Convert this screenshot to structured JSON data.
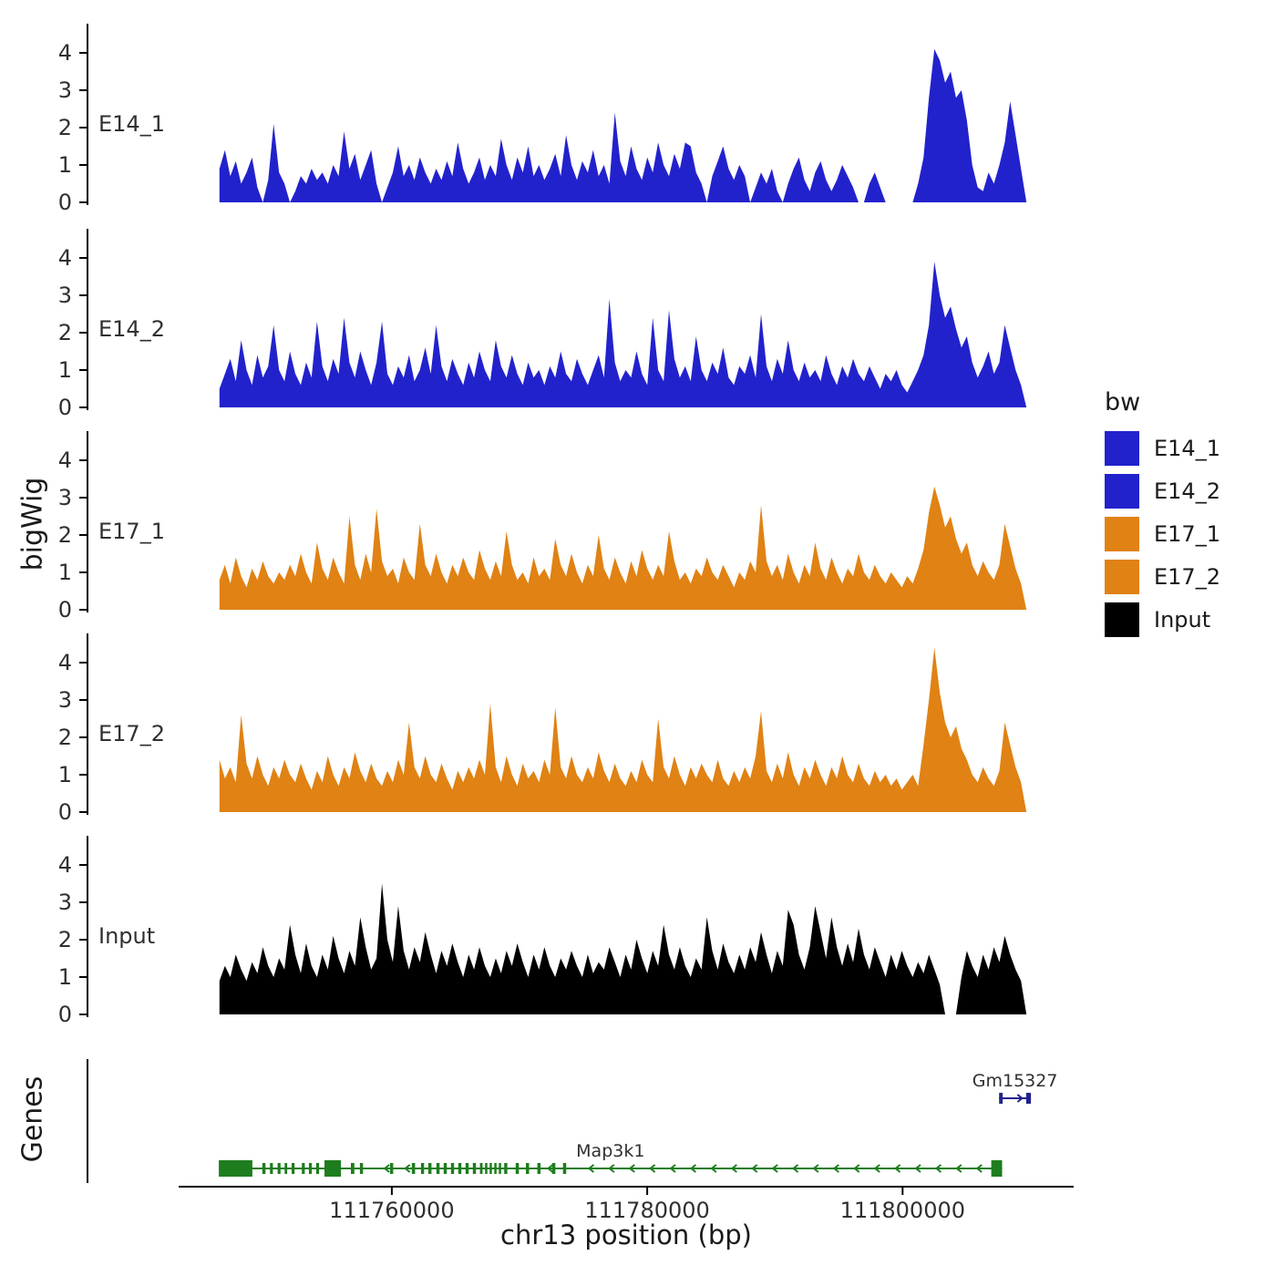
{
  "figure": {
    "y_axis_label": "bigWig",
    "genes_axis_label": "Genes",
    "x_axis_label": "chr13 position (bp)",
    "x_ticks": [
      111760000,
      111780000,
      111800000
    ],
    "x_tick_labels": [
      "111760000",
      "111780000",
      "111800000"
    ],
    "legend": {
      "title": "bw",
      "entries": [
        {
          "label": "E14_1",
          "color": "#2222cd"
        },
        {
          "label": "E14_2",
          "color": "#2222cd"
        },
        {
          "label": "E17_1",
          "color": "#e08214"
        },
        {
          "label": "E17_2",
          "color": "#e08214"
        },
        {
          "label": "Input",
          "color": "#000000"
        }
      ]
    }
  },
  "chart_data": {
    "type": "area",
    "title": "",
    "xlabel": "chr13 position (bp)",
    "ylabel": "bigWig",
    "x_domain": [
      111743300,
      111813400
    ],
    "x_range": [
      111746500,
      111809700
    ],
    "y_ticks": [
      0,
      1,
      2,
      3,
      4
    ],
    "ylim": [
      0,
      4.7
    ],
    "tracks": [
      {
        "name": "E14_1",
        "color": "#2222cd",
        "values": [
          0.9,
          1.4,
          0.7,
          1.1,
          0.5,
          0.8,
          1.2,
          0.4,
          0,
          0.6,
          2.1,
          0.8,
          0.5,
          0,
          0.3,
          0.7,
          0.5,
          0.9,
          0.6,
          0.8,
          0.5,
          1.0,
          0.7,
          1.9,
          0.9,
          1.3,
          0.6,
          1.0,
          1.4,
          0.5,
          0,
          0.4,
          0.8,
          1.5,
          0.7,
          1.0,
          0.6,
          1.2,
          0.8,
          0.5,
          0.9,
          0.6,
          1.1,
          0.7,
          1.6,
          0.9,
          0.5,
          0.8,
          1.2,
          0.6,
          1.0,
          0.7,
          1.7,
          1.0,
          0.6,
          1.2,
          0.8,
          1.5,
          0.7,
          1.0,
          0.6,
          0.9,
          1.3,
          0.7,
          1.8,
          1.0,
          0.6,
          1.1,
          0.8,
          1.4,
          0.7,
          1.0,
          0.5,
          2.4,
          1.1,
          0.7,
          1.5,
          0.9,
          0.6,
          1.2,
          0.8,
          1.6,
          1.0,
          0.7,
          1.3,
          0.9,
          1.6,
          1.5,
          0.8,
          0.5,
          0,
          0.7,
          1.1,
          1.5,
          0.9,
          0.6,
          1.0,
          0.7,
          0,
          0.4,
          0.8,
          0.5,
          0.9,
          0.3,
          0,
          0.5,
          0.9,
          1.2,
          0.6,
          0.3,
          0.8,
          1.1,
          0.6,
          0.3,
          0.6,
          1.0,
          0.7,
          0.4,
          0,
          0,
          0.5,
          0.8,
          0.4,
          0,
          0,
          0,
          0,
          0,
          0,
          0.5,
          1.2,
          2.8,
          4.1,
          3.8,
          3.2,
          3.5,
          2.8,
          3.0,
          2.2,
          1.0,
          0.4,
          0.3,
          0.8,
          0.5,
          1.0,
          1.6,
          2.7,
          1.8,
          0.9,
          0
        ]
      },
      {
        "name": "E14_2",
        "color": "#2222cd",
        "values": [
          0.5,
          0.9,
          1.3,
          0.7,
          1.8,
          1.0,
          0.6,
          1.4,
          0.8,
          1.1,
          2.2,
          1.0,
          0.7,
          1.5,
          0.9,
          0.6,
          1.2,
          0.8,
          2.3,
          1.1,
          0.7,
          1.3,
          0.9,
          2.4,
          1.2,
          0.8,
          1.5,
          1.0,
          0.6,
          1.2,
          2.3,
          0.9,
          0.6,
          1.1,
          0.8,
          1.4,
          0.7,
          1.0,
          1.6,
          0.9,
          2.2,
          1.1,
          0.7,
          1.3,
          0.9,
          0.6,
          1.2,
          0.8,
          1.5,
          1.0,
          0.7,
          1.8,
          1.1,
          0.8,
          1.4,
          0.9,
          0.6,
          1.2,
          0.8,
          1.0,
          0.6,
          1.1,
          0.8,
          1.5,
          0.9,
          0.7,
          1.3,
          0.9,
          0.6,
          1.0,
          1.4,
          0.8,
          2.9,
          1.2,
          0.7,
          1.0,
          0.8,
          1.5,
          0.9,
          0.6,
          2.4,
          1.0,
          0.7,
          2.6,
          1.3,
          0.8,
          1.1,
          0.7,
          1.9,
          1.0,
          0.7,
          1.2,
          0.9,
          1.6,
          0.8,
          0.6,
          1.1,
          0.9,
          1.4,
          0.8,
          2.5,
          1.1,
          0.7,
          1.3,
          0.9,
          1.8,
          1.0,
          0.7,
          1.2,
          0.8,
          1.0,
          0.7,
          1.4,
          0.9,
          0.6,
          1.1,
          0.8,
          1.3,
          0.9,
          0.7,
          1.1,
          0.8,
          0.5,
          0.9,
          0.7,
          1.0,
          0.6,
          0.4,
          0.7,
          1.0,
          1.4,
          2.2,
          3.9,
          3.0,
          2.4,
          2.7,
          2.1,
          1.6,
          1.9,
          1.2,
          0.8,
          1.1,
          1.5,
          0.9,
          1.2,
          2.2,
          1.6,
          1.0,
          0.6,
          0
        ]
      },
      {
        "name": "E17_1",
        "color": "#e08214",
        "values": [
          0.8,
          1.2,
          0.7,
          1.4,
          0.9,
          0.6,
          1.1,
          0.8,
          1.3,
          0.9,
          0.7,
          1.0,
          0.8,
          1.2,
          0.9,
          1.5,
          1.0,
          0.7,
          1.8,
          1.1,
          0.8,
          1.4,
          1.0,
          0.7,
          2.5,
          1.2,
          0.8,
          1.5,
          1.0,
          2.7,
          1.3,
          0.9,
          1.1,
          0.7,
          1.4,
          1.0,
          0.8,
          2.3,
          1.2,
          0.9,
          1.5,
          1.0,
          0.7,
          1.2,
          0.9,
          1.4,
          1.0,
          0.8,
          1.6,
          1.1,
          0.8,
          1.3,
          0.9,
          2.1,
          1.2,
          0.8,
          1.0,
          0.7,
          1.4,
          0.9,
          1.1,
          0.8,
          1.9,
          1.2,
          0.9,
          1.5,
          1.0,
          0.7,
          1.2,
          0.9,
          2.0,
          1.1,
          0.8,
          1.4,
          1.0,
          0.7,
          1.3,
          0.9,
          1.6,
          1.1,
          0.8,
          1.2,
          0.9,
          2.1,
          1.3,
          0.8,
          1.0,
          0.7,
          1.1,
          0.9,
          1.4,
          1.0,
          0.8,
          1.2,
          0.9,
          0.6,
          1.0,
          0.8,
          1.3,
          1.0,
          2.8,
          1.3,
          0.9,
          1.2,
          0.8,
          1.5,
          1.0,
          0.7,
          1.2,
          0.9,
          1.8,
          1.1,
          0.8,
          1.4,
          1.0,
          0.7,
          1.1,
          0.9,
          1.5,
          1.0,
          0.8,
          1.2,
          0.9,
          0.7,
          1.0,
          0.8,
          0.6,
          0.9,
          0.7,
          1.1,
          1.6,
          2.6,
          3.3,
          2.8,
          2.2,
          2.5,
          1.9,
          1.5,
          1.8,
          1.2,
          0.9,
          1.3,
          1.0,
          0.8,
          1.2,
          2.3,
          1.7,
          1.1,
          0.7,
          0
        ]
      },
      {
        "name": "E17_2",
        "color": "#e08214",
        "values": [
          1.4,
          0.9,
          1.2,
          0.8,
          2.6,
          1.3,
          0.9,
          1.5,
          1.0,
          0.7,
          1.2,
          0.9,
          1.4,
          1.0,
          0.8,
          1.3,
          0.9,
          0.6,
          1.1,
          0.8,
          1.5,
          1.0,
          0.7,
          1.2,
          0.9,
          1.6,
          1.1,
          0.8,
          1.3,
          0.9,
          0.7,
          1.1,
          0.8,
          1.4,
          1.0,
          2.4,
          1.2,
          0.9,
          1.5,
          1.0,
          0.8,
          1.3,
          0.9,
          0.6,
          1.1,
          0.8,
          1.2,
          0.9,
          1.4,
          1.0,
          2.9,
          1.2,
          0.8,
          1.5,
          1.0,
          0.7,
          1.3,
          0.9,
          1.1,
          0.8,
          1.4,
          1.0,
          2.8,
          1.2,
          0.9,
          1.5,
          1.0,
          0.8,
          1.2,
          0.9,
          1.6,
          1.1,
          0.8,
          1.3,
          0.9,
          0.7,
          1.1,
          0.8,
          1.4,
          1.0,
          0.8,
          2.5,
          1.2,
          0.9,
          1.5,
          1.0,
          0.7,
          1.2,
          0.9,
          1.3,
          1.0,
          0.8,
          1.4,
          0.9,
          0.7,
          1.1,
          0.8,
          1.2,
          0.9,
          1.5,
          2.7,
          1.1,
          0.8,
          1.3,
          0.9,
          1.6,
          1.0,
          0.7,
          1.2,
          0.9,
          1.4,
          1.0,
          0.7,
          1.2,
          0.9,
          1.5,
          1.0,
          0.8,
          1.3,
          0.9,
          0.7,
          1.1,
          0.8,
          1.0,
          0.7,
          0.9,
          0.6,
          0.8,
          1.0,
          0.7,
          1.8,
          3.0,
          4.4,
          3.2,
          2.4,
          2.0,
          2.3,
          1.7,
          1.4,
          1.0,
          0.8,
          1.2,
          0.9,
          0.7,
          1.1,
          2.4,
          1.8,
          1.2,
          0.8,
          0
        ]
      },
      {
        "name": "Input",
        "color": "#000000",
        "values": [
          0.9,
          1.3,
          1.0,
          1.6,
          1.2,
          0.9,
          1.4,
          1.1,
          1.8,
          1.3,
          1.0,
          1.5,
          1.2,
          2.4,
          1.6,
          1.1,
          1.9,
          1.3,
          1.0,
          1.6,
          1.2,
          2.1,
          1.5,
          1.1,
          1.7,
          1.3,
          2.6,
          1.8,
          1.2,
          1.5,
          3.5,
          2.0,
          1.4,
          2.9,
          1.7,
          1.2,
          1.8,
          1.4,
          2.2,
          1.6,
          1.1,
          1.7,
          1.3,
          1.9,
          1.4,
          1.0,
          1.6,
          1.2,
          1.8,
          1.3,
          1.0,
          1.5,
          1.1,
          1.7,
          1.3,
          1.9,
          1.4,
          1.0,
          1.6,
          1.2,
          1.8,
          1.3,
          1.0,
          1.5,
          1.2,
          1.7,
          1.3,
          1.0,
          1.6,
          1.1,
          1.4,
          1.2,
          1.8,
          1.4,
          1.0,
          1.6,
          1.2,
          2.0,
          1.5,
          1.1,
          1.7,
          1.3,
          2.4,
          1.6,
          1.2,
          1.8,
          1.3,
          1.0,
          1.5,
          1.2,
          2.6,
          1.7,
          1.2,
          1.9,
          1.4,
          1.1,
          1.6,
          1.2,
          1.8,
          1.4,
          2.2,
          1.6,
          1.1,
          1.7,
          1.3,
          2.8,
          2.4,
          1.6,
          1.2,
          1.8,
          2.9,
          2.2,
          1.5,
          2.6,
          1.8,
          1.3,
          1.9,
          1.4,
          2.3,
          1.6,
          1.2,
          1.8,
          1.4,
          1.0,
          1.6,
          1.2,
          1.7,
          1.3,
          1.0,
          1.4,
          1.1,
          1.6,
          1.2,
          0.8,
          0,
          0,
          0,
          1.0,
          1.7,
          1.3,
          1.0,
          1.6,
          1.2,
          1.8,
          1.4,
          2.1,
          1.6,
          1.2,
          0.9,
          0
        ]
      }
    ],
    "genes": [
      {
        "name": "Gm15327",
        "color": "#23238c",
        "strand": "+",
        "row": 0,
        "start": 111807560,
        "end": 111810050,
        "arrow_step": 900,
        "exons": [
          [
            111807560,
            111807840
          ],
          [
            111809680,
            111810050
          ]
        ]
      },
      {
        "name": "Map3k1",
        "color": "#1e7d1e",
        "strand": "-",
        "row": 1,
        "start": 111746450,
        "end": 111807800,
        "arrow_step": 1600,
        "exons": [
          [
            111746450,
            111749080
          ],
          [
            111749850,
            111750100
          ],
          [
            111750450,
            111750680
          ],
          [
            111751050,
            111751280
          ],
          [
            111751600,
            111751800
          ],
          [
            111752150,
            111752380
          ],
          [
            111752950,
            111753180
          ],
          [
            111753500,
            111753730
          ],
          [
            111754070,
            111754300
          ],
          [
            111754720,
            111756010
          ],
          [
            111756790,
            111757060
          ],
          [
            111757500,
            111757740
          ],
          [
            111759860,
            111760100
          ],
          [
            111761570,
            111761820
          ],
          [
            111762280,
            111762520
          ],
          [
            111762850,
            111763100
          ],
          [
            111763490,
            111763740
          ],
          [
            111764060,
            111764300
          ],
          [
            111764630,
            111764870
          ],
          [
            111765200,
            111765440
          ],
          [
            111765770,
            111766010
          ],
          [
            111766340,
            111766580
          ],
          [
            111766900,
            111767100
          ],
          [
            111767300,
            111767480
          ],
          [
            111767660,
            111767840
          ],
          [
            111768020,
            111768200
          ],
          [
            111768380,
            111768560
          ],
          [
            111768800,
            111769040
          ],
          [
            111769700,
            111769950
          ],
          [
            111770500,
            111770750
          ],
          [
            111771400,
            111771650
          ],
          [
            111772550,
            111772800
          ],
          [
            111773400,
            111773650
          ],
          [
            111806950,
            111807800
          ]
        ]
      }
    ]
  }
}
